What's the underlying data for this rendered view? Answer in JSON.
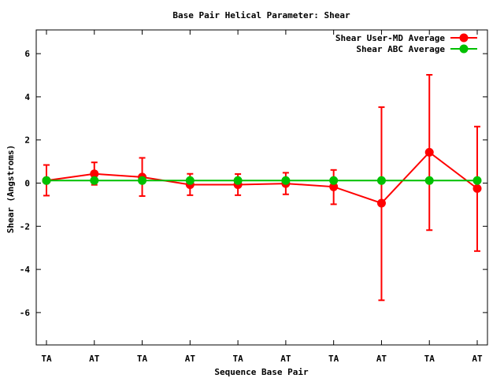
{
  "chart_data": {
    "type": "line",
    "title": "Base Pair Helical Parameter: Shear",
    "xlabel": "Sequence Base Pair",
    "ylabel": "Shear (Angstroms)",
    "categories": [
      "TA",
      "AT",
      "TA",
      "AT",
      "TA",
      "AT",
      "TA",
      "AT",
      "TA",
      "AT"
    ],
    "ylim": [
      -7.5,
      7.1
    ],
    "yticks": [
      -6,
      -4,
      -2,
      0,
      2,
      4,
      6
    ],
    "ytick_labels": [
      "-6",
      "-4",
      "-2",
      "0",
      "2",
      "4",
      "6"
    ],
    "grid": false,
    "legend_position": "top-right",
    "series": [
      {
        "name": "Shear User-MD Average",
        "color": "#ff0000",
        "values": [
          0.12,
          0.43,
          0.28,
          -0.07,
          -0.07,
          -0.02,
          -0.17,
          -0.93,
          1.43,
          -0.25
        ],
        "error_low": [
          -0.58,
          -0.08,
          -0.6,
          -0.56,
          -0.56,
          -0.52,
          -0.98,
          -5.43,
          -2.18,
          -3.15
        ],
        "error_high": [
          0.84,
          0.96,
          1.17,
          0.43,
          0.42,
          0.48,
          0.61,
          3.52,
          5.02,
          2.62
        ]
      },
      {
        "name": "Shear ABC Average",
        "color": "#00c000",
        "values": [
          0.12,
          0.12,
          0.12,
          0.12,
          0.12,
          0.12,
          0.12,
          0.12,
          0.12,
          0.12
        ]
      }
    ]
  }
}
